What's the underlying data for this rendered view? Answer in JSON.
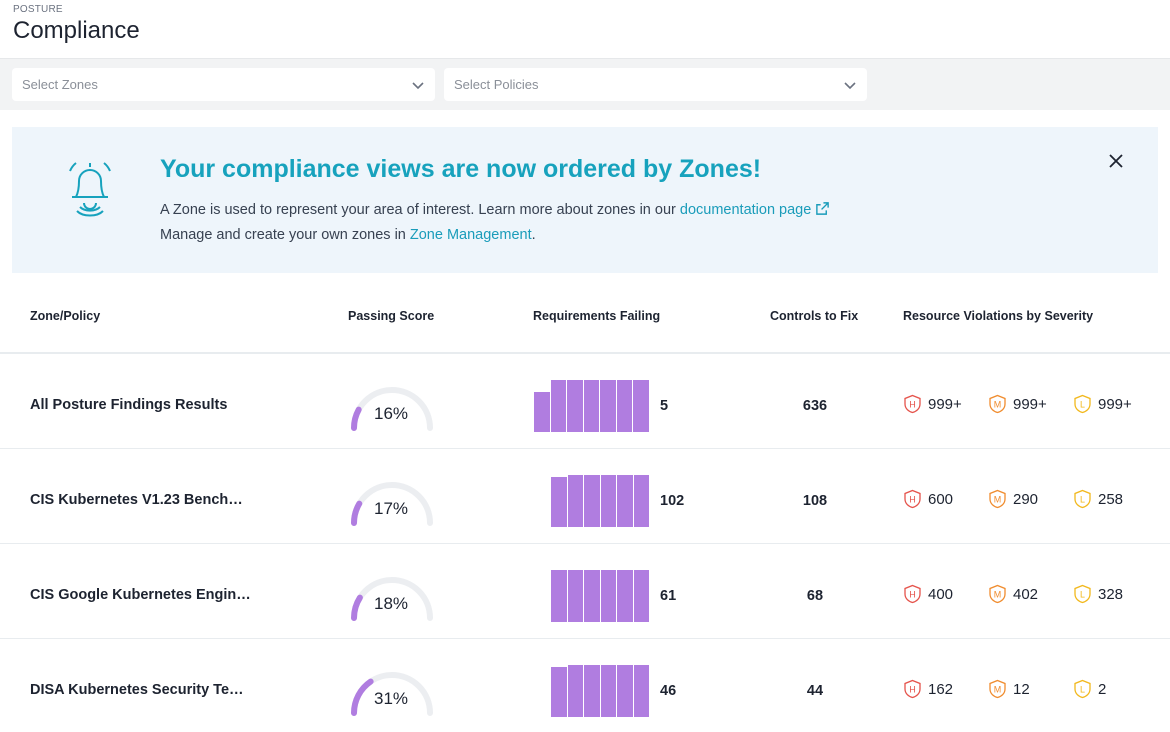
{
  "header": {
    "eyebrow": "POSTURE",
    "title": "Compliance"
  },
  "filters": {
    "zones_placeholder": "Select Zones",
    "policies_placeholder": "Select Policies"
  },
  "banner": {
    "title": "Your compliance views are now ordered by Zones!",
    "line1_text": "A Zone is used to represent your area of interest. Learn more about zones in our ",
    "line1_link": "documentation page",
    "line2_text": "Manage and create your own zones in ",
    "line2_link": "Zone Management",
    "line2_end": "."
  },
  "table": {
    "columns": [
      "Zone/Policy",
      "Passing Score",
      "Requirements Failing",
      "Controls to Fix",
      "Resource Violations by Severity"
    ],
    "rows": [
      {
        "name": "All Posture Findings Results",
        "score": "16%",
        "score_value": 16,
        "failing": "5",
        "controls": "636",
        "high": "999+",
        "medium": "999+",
        "low": "999+"
      },
      {
        "name": "CIS Kubernetes V1.23 Bench…",
        "score": "17%",
        "score_value": 17,
        "failing": "102",
        "controls": "108",
        "high": "600",
        "medium": "290",
        "low": "258"
      },
      {
        "name": "CIS Google Kubernetes Engin…",
        "score": "18%",
        "score_value": 18,
        "failing": "61",
        "controls": "68",
        "high": "400",
        "medium": "402",
        "low": "328"
      },
      {
        "name": "DISA Kubernetes Security Te…",
        "score": "31%",
        "score_value": 31,
        "failing": "46",
        "controls": "44",
        "high": "162",
        "medium": "12",
        "low": "2"
      }
    ]
  },
  "severity_labels": {
    "high": "H",
    "medium": "M",
    "low": "L"
  },
  "colors": {
    "accent": "#17a2bd",
    "bar": "#b07de0",
    "gauge": "#b07de0",
    "high": "#e5534b",
    "medium": "#f08c2e",
    "low": "#f2b81c"
  },
  "icons": {
    "bell": "bell-icon",
    "close": "close-icon",
    "chevron": "chevron-down-icon",
    "external": "external-link-icon"
  }
}
